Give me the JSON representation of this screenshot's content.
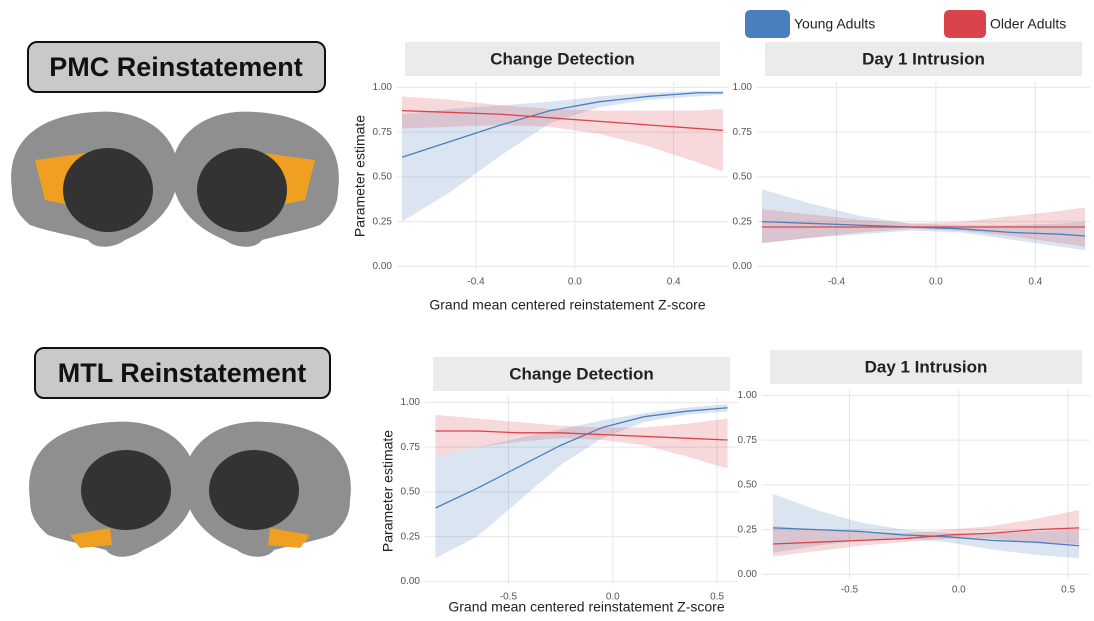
{
  "row_labels": [
    "PMC Reinstatement",
    "MTL Reinstatement"
  ],
  "chart_data": [
    {
      "type": "line",
      "title": "Change Detection",
      "ylabel": "Parameter estimate",
      "xlabel": "Grand mean centered reinstatement Z-score",
      "x": [
        -0.7,
        -0.5,
        -0.3,
        -0.1,
        0.1,
        0.3,
        0.5,
        0.6
      ],
      "xlim": [
        -0.72,
        0.62
      ],
      "xticks": [
        -0.4,
        {
          "value": 0,
          "label": "0.0"
        },
        0.4
      ],
      "ylim": [
        -0.02,
        1.03
      ],
      "yticks": [
        {
          "value": 0,
          "label": "0.00"
        },
        {
          "value": 0.25,
          "label": "0.25"
        },
        {
          "value": 0.5,
          "label": "0.50"
        },
        {
          "value": 0.75,
          "label": "0.75"
        },
        {
          "value": 1,
          "label": "1.00"
        }
      ],
      "grid": true,
      "series": [
        {
          "name": "Young Adults",
          "color": "#4a7fbf",
          "values": [
            0.61,
            0.7,
            0.79,
            0.87,
            0.92,
            0.95,
            0.97,
            0.97
          ],
          "lower": [
            0.25,
            0.42,
            0.62,
            0.8,
            0.89,
            0.93,
            0.95,
            0.96
          ],
          "upper": [
            0.85,
            0.88,
            0.9,
            0.92,
            0.95,
            0.97,
            0.98,
            0.98
          ]
        },
        {
          "name": "Older Adults",
          "color": "#d9434b",
          "values": [
            0.87,
            0.86,
            0.85,
            0.83,
            0.81,
            0.79,
            0.77,
            0.76
          ],
          "lower": [
            0.77,
            0.78,
            0.79,
            0.78,
            0.74,
            0.67,
            0.58,
            0.53
          ],
          "upper": [
            0.95,
            0.93,
            0.9,
            0.88,
            0.87,
            0.87,
            0.87,
            0.88
          ]
        }
      ]
    },
    {
      "type": "line",
      "title": "Day 1 Intrusion",
      "x": [
        -0.7,
        -0.5,
        -0.3,
        -0.1,
        0.1,
        0.3,
        0.5,
        0.6
      ],
      "xlim": [
        -0.72,
        0.62
      ],
      "xticks": [
        -0.4,
        {
          "value": 0,
          "label": "0.0"
        },
        0.4
      ],
      "ylim": [
        -0.02,
        1.03
      ],
      "yticks": [
        {
          "value": 0,
          "label": "0.00"
        },
        {
          "value": 0.25,
          "label": "0.25"
        },
        {
          "value": 0.5,
          "label": "0.50"
        },
        {
          "value": 0.75,
          "label": "0.75"
        },
        {
          "value": 1,
          "label": "1.00"
        }
      ],
      "grid": true,
      "series": [
        {
          "name": "Young Adults",
          "color": "#4a7fbf",
          "values": [
            0.25,
            0.24,
            0.23,
            0.22,
            0.21,
            0.19,
            0.18,
            0.17
          ],
          "lower": [
            0.13,
            0.16,
            0.18,
            0.2,
            0.19,
            0.15,
            0.11,
            0.09
          ],
          "upper": [
            0.43,
            0.35,
            0.28,
            0.24,
            0.23,
            0.23,
            0.24,
            0.25
          ]
        },
        {
          "name": "Older Adults",
          "color": "#d9434b",
          "values": [
            0.22,
            0.22,
            0.22,
            0.22,
            0.22,
            0.22,
            0.22,
            0.22
          ],
          "lower": [
            0.13,
            0.16,
            0.19,
            0.21,
            0.2,
            0.17,
            0.13,
            0.11
          ],
          "upper": [
            0.32,
            0.29,
            0.26,
            0.24,
            0.25,
            0.28,
            0.31,
            0.33
          ]
        }
      ]
    },
    {
      "type": "line",
      "title": "Change Detection",
      "ylabel": "Parameter estimate",
      "xlabel": "Grand mean centered reinstatement Z-score",
      "x": [
        -0.85,
        -0.65,
        -0.45,
        -0.25,
        -0.05,
        0.15,
        0.35,
        0.55
      ],
      "xlim": [
        -0.9,
        0.6
      ],
      "xticks": [
        -0.5,
        {
          "value": 0,
          "label": "0.0"
        },
        0.5
      ],
      "ylim": [
        -0.02,
        1.03
      ],
      "yticks": [
        {
          "value": 0,
          "label": "0.00"
        },
        {
          "value": 0.25,
          "label": "0.25"
        },
        {
          "value": 0.5,
          "label": "0.50"
        },
        {
          "value": 0.75,
          "label": "0.75"
        },
        {
          "value": 1,
          "label": "1.00"
        }
      ],
      "grid": true,
      "series": [
        {
          "name": "Young Adults",
          "color": "#4a7fbf",
          "values": [
            0.41,
            0.52,
            0.64,
            0.76,
            0.86,
            0.92,
            0.95,
            0.97
          ],
          "lower": [
            0.13,
            0.25,
            0.45,
            0.65,
            0.8,
            0.89,
            0.93,
            0.95
          ],
          "upper": [
            0.7,
            0.75,
            0.8,
            0.85,
            0.9,
            0.94,
            0.97,
            0.99
          ]
        },
        {
          "name": "Older Adults",
          "color": "#d9434b",
          "values": [
            0.84,
            0.84,
            0.83,
            0.83,
            0.82,
            0.81,
            0.8,
            0.79
          ],
          "lower": [
            0.7,
            0.75,
            0.78,
            0.8,
            0.79,
            0.76,
            0.7,
            0.63
          ],
          "upper": [
            0.93,
            0.91,
            0.89,
            0.87,
            0.86,
            0.86,
            0.88,
            0.91
          ]
        }
      ]
    },
    {
      "type": "line",
      "title": "Day 1 Intrusion",
      "x": [
        -0.85,
        -0.65,
        -0.45,
        -0.25,
        -0.05,
        0.15,
        0.35,
        0.55
      ],
      "xlim": [
        -0.9,
        0.6
      ],
      "xticks": [
        -0.5,
        {
          "value": 0,
          "label": "0.0"
        },
        0.5
      ],
      "ylim": [
        -0.02,
        1.03
      ],
      "yticks": [
        {
          "value": 0,
          "label": "0.00"
        },
        {
          "value": 0.25,
          "label": "0.25"
        },
        {
          "value": 0.5,
          "label": "0.50"
        },
        {
          "value": 0.75,
          "label": "0.75"
        },
        {
          "value": 1,
          "label": "1.00"
        }
      ],
      "grid": true,
      "series": [
        {
          "name": "Young Adults",
          "color": "#4a7fbf",
          "values": [
            0.26,
            0.25,
            0.24,
            0.22,
            0.21,
            0.19,
            0.18,
            0.16
          ],
          "lower": [
            0.12,
            0.16,
            0.19,
            0.2,
            0.18,
            0.14,
            0.11,
            0.09
          ],
          "upper": [
            0.45,
            0.36,
            0.29,
            0.25,
            0.23,
            0.23,
            0.24,
            0.25
          ]
        },
        {
          "name": "Older Adults",
          "color": "#d9434b",
          "values": [
            0.17,
            0.18,
            0.19,
            0.2,
            0.22,
            0.23,
            0.25,
            0.26
          ],
          "lower": [
            0.1,
            0.13,
            0.16,
            0.18,
            0.2,
            0.2,
            0.18,
            0.17
          ],
          "upper": [
            0.27,
            0.25,
            0.24,
            0.23,
            0.25,
            0.27,
            0.31,
            0.36
          ]
        }
      ]
    }
  ]
}
